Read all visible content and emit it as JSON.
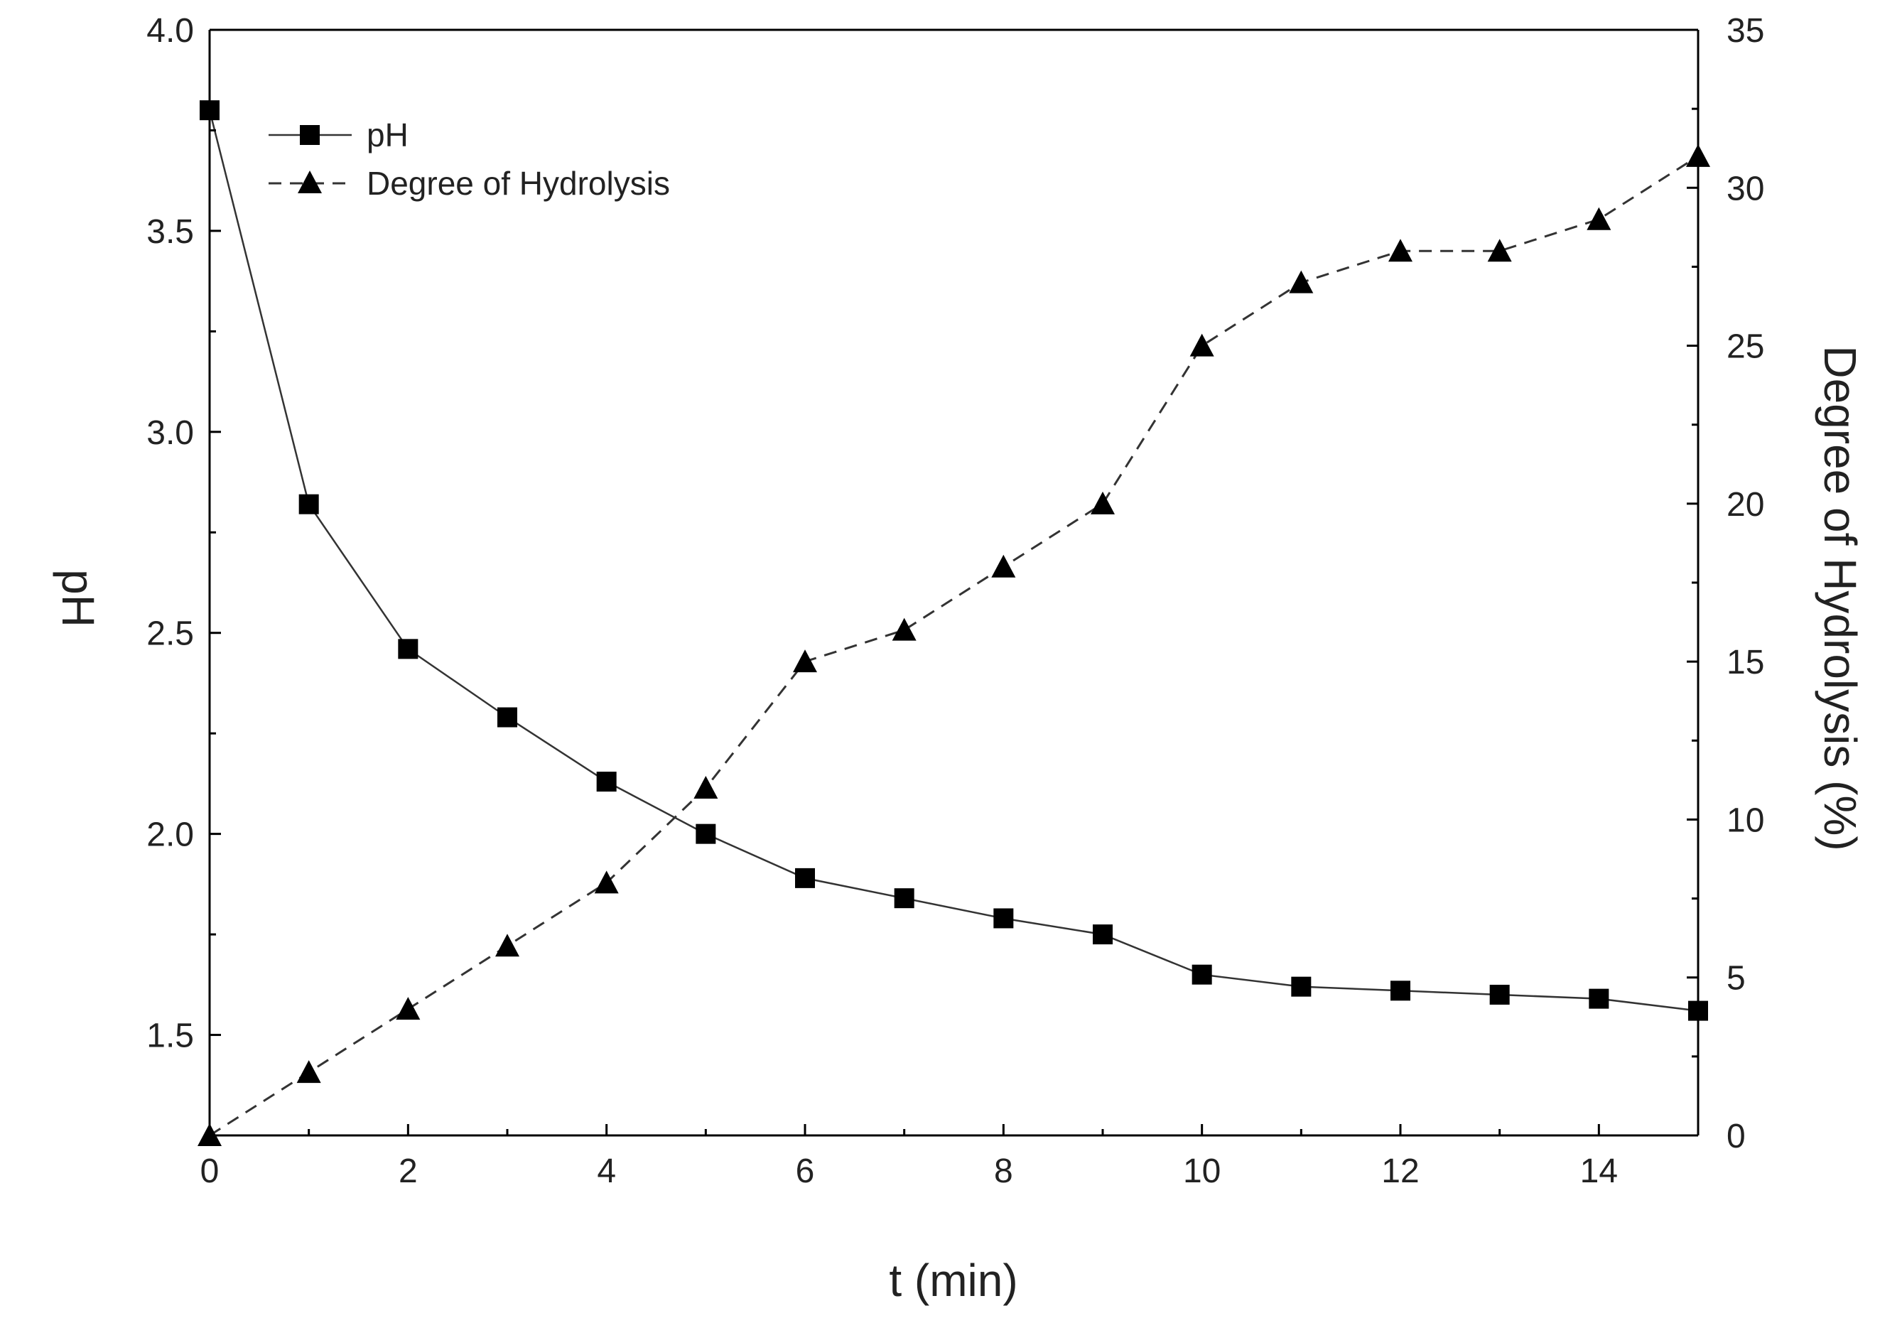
{
  "chart_data": {
    "type": "line",
    "xlabel": "t (min)",
    "ylabel": "pH",
    "y2label": "Degree of Hydrolysis (%)",
    "xlim": [
      0,
      15
    ],
    "ylim": [
      1.25,
      4.0
    ],
    "y2lim": [
      0,
      35
    ],
    "x_ticks": [
      0,
      2,
      4,
      6,
      8,
      10,
      12,
      14
    ],
    "x_tick_labels": [
      "0",
      "2",
      "4",
      "6",
      "8",
      "10",
      "12",
      "14"
    ],
    "y_ticks": [
      1.5,
      2.0,
      2.5,
      3.0,
      3.5,
      4.0
    ],
    "y_tick_labels": [
      "1.5",
      "2.0",
      "2.5",
      "3.0",
      "3.5",
      "4.0"
    ],
    "y2_ticks": [
      0,
      5,
      10,
      15,
      20,
      25,
      30,
      35
    ],
    "y2_tick_labels": [
      "0",
      "5",
      "10",
      "15",
      "20",
      "25",
      "30",
      "35"
    ],
    "grid": false,
    "legend_position": "top-left",
    "x": [
      0,
      1,
      2,
      3,
      4,
      5,
      6,
      7,
      8,
      9,
      10,
      11,
      12,
      13,
      14,
      15
    ],
    "series": [
      {
        "name": "pH",
        "axis": "left",
        "marker": "square",
        "line_style": "solid",
        "values": [
          3.8,
          2.82,
          2.46,
          2.29,
          2.13,
          2.0,
          1.89,
          1.84,
          1.79,
          1.75,
          1.65,
          1.62,
          1.61,
          1.6,
          1.59,
          1.56
        ]
      },
      {
        "name": "Degree of Hydrolysis",
        "axis": "right",
        "marker": "triangle",
        "line_style": "dashed",
        "values": [
          0,
          2,
          4,
          6,
          8,
          11,
          15,
          16,
          18,
          20,
          25,
          27,
          28,
          28,
          29,
          31
        ]
      }
    ]
  }
}
